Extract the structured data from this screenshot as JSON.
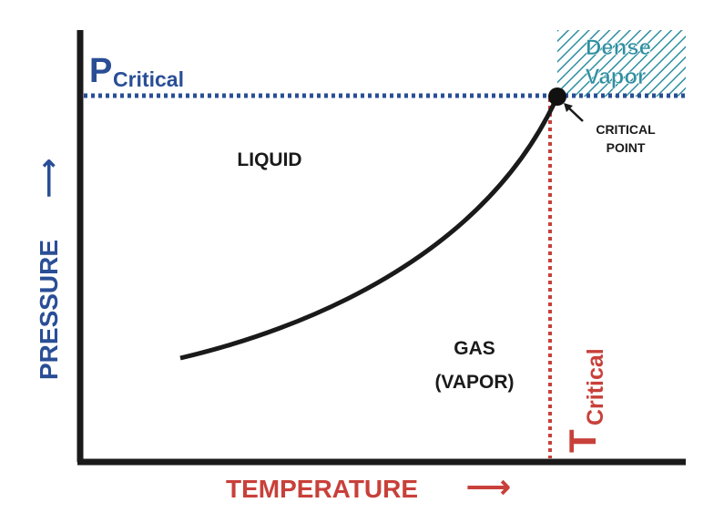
{
  "diagram": {
    "p_critical": {
      "main": "P",
      "sub": "Critical"
    },
    "t_critical": {
      "main": "T",
      "sub": "Critical"
    },
    "dense_vapor": {
      "line1": "Dense",
      "line2": "Vapor"
    },
    "critical_point": {
      "line1": "CRITICAL",
      "line2": "POINT"
    },
    "liquid_label": "LIQUID",
    "gas_label": {
      "line1": "GAS",
      "line2": "(VAPOR)"
    },
    "x_axis_label": "TEMPERATURE",
    "x_axis_arrow": "⟶",
    "y_axis_label": "PRESSURE",
    "y_axis_arrow": "⟶",
    "colors": {
      "blue": "#2a4e96",
      "red": "#c8403a",
      "teal": "#2f8fa1",
      "axis": "#1a1a1a"
    }
  }
}
